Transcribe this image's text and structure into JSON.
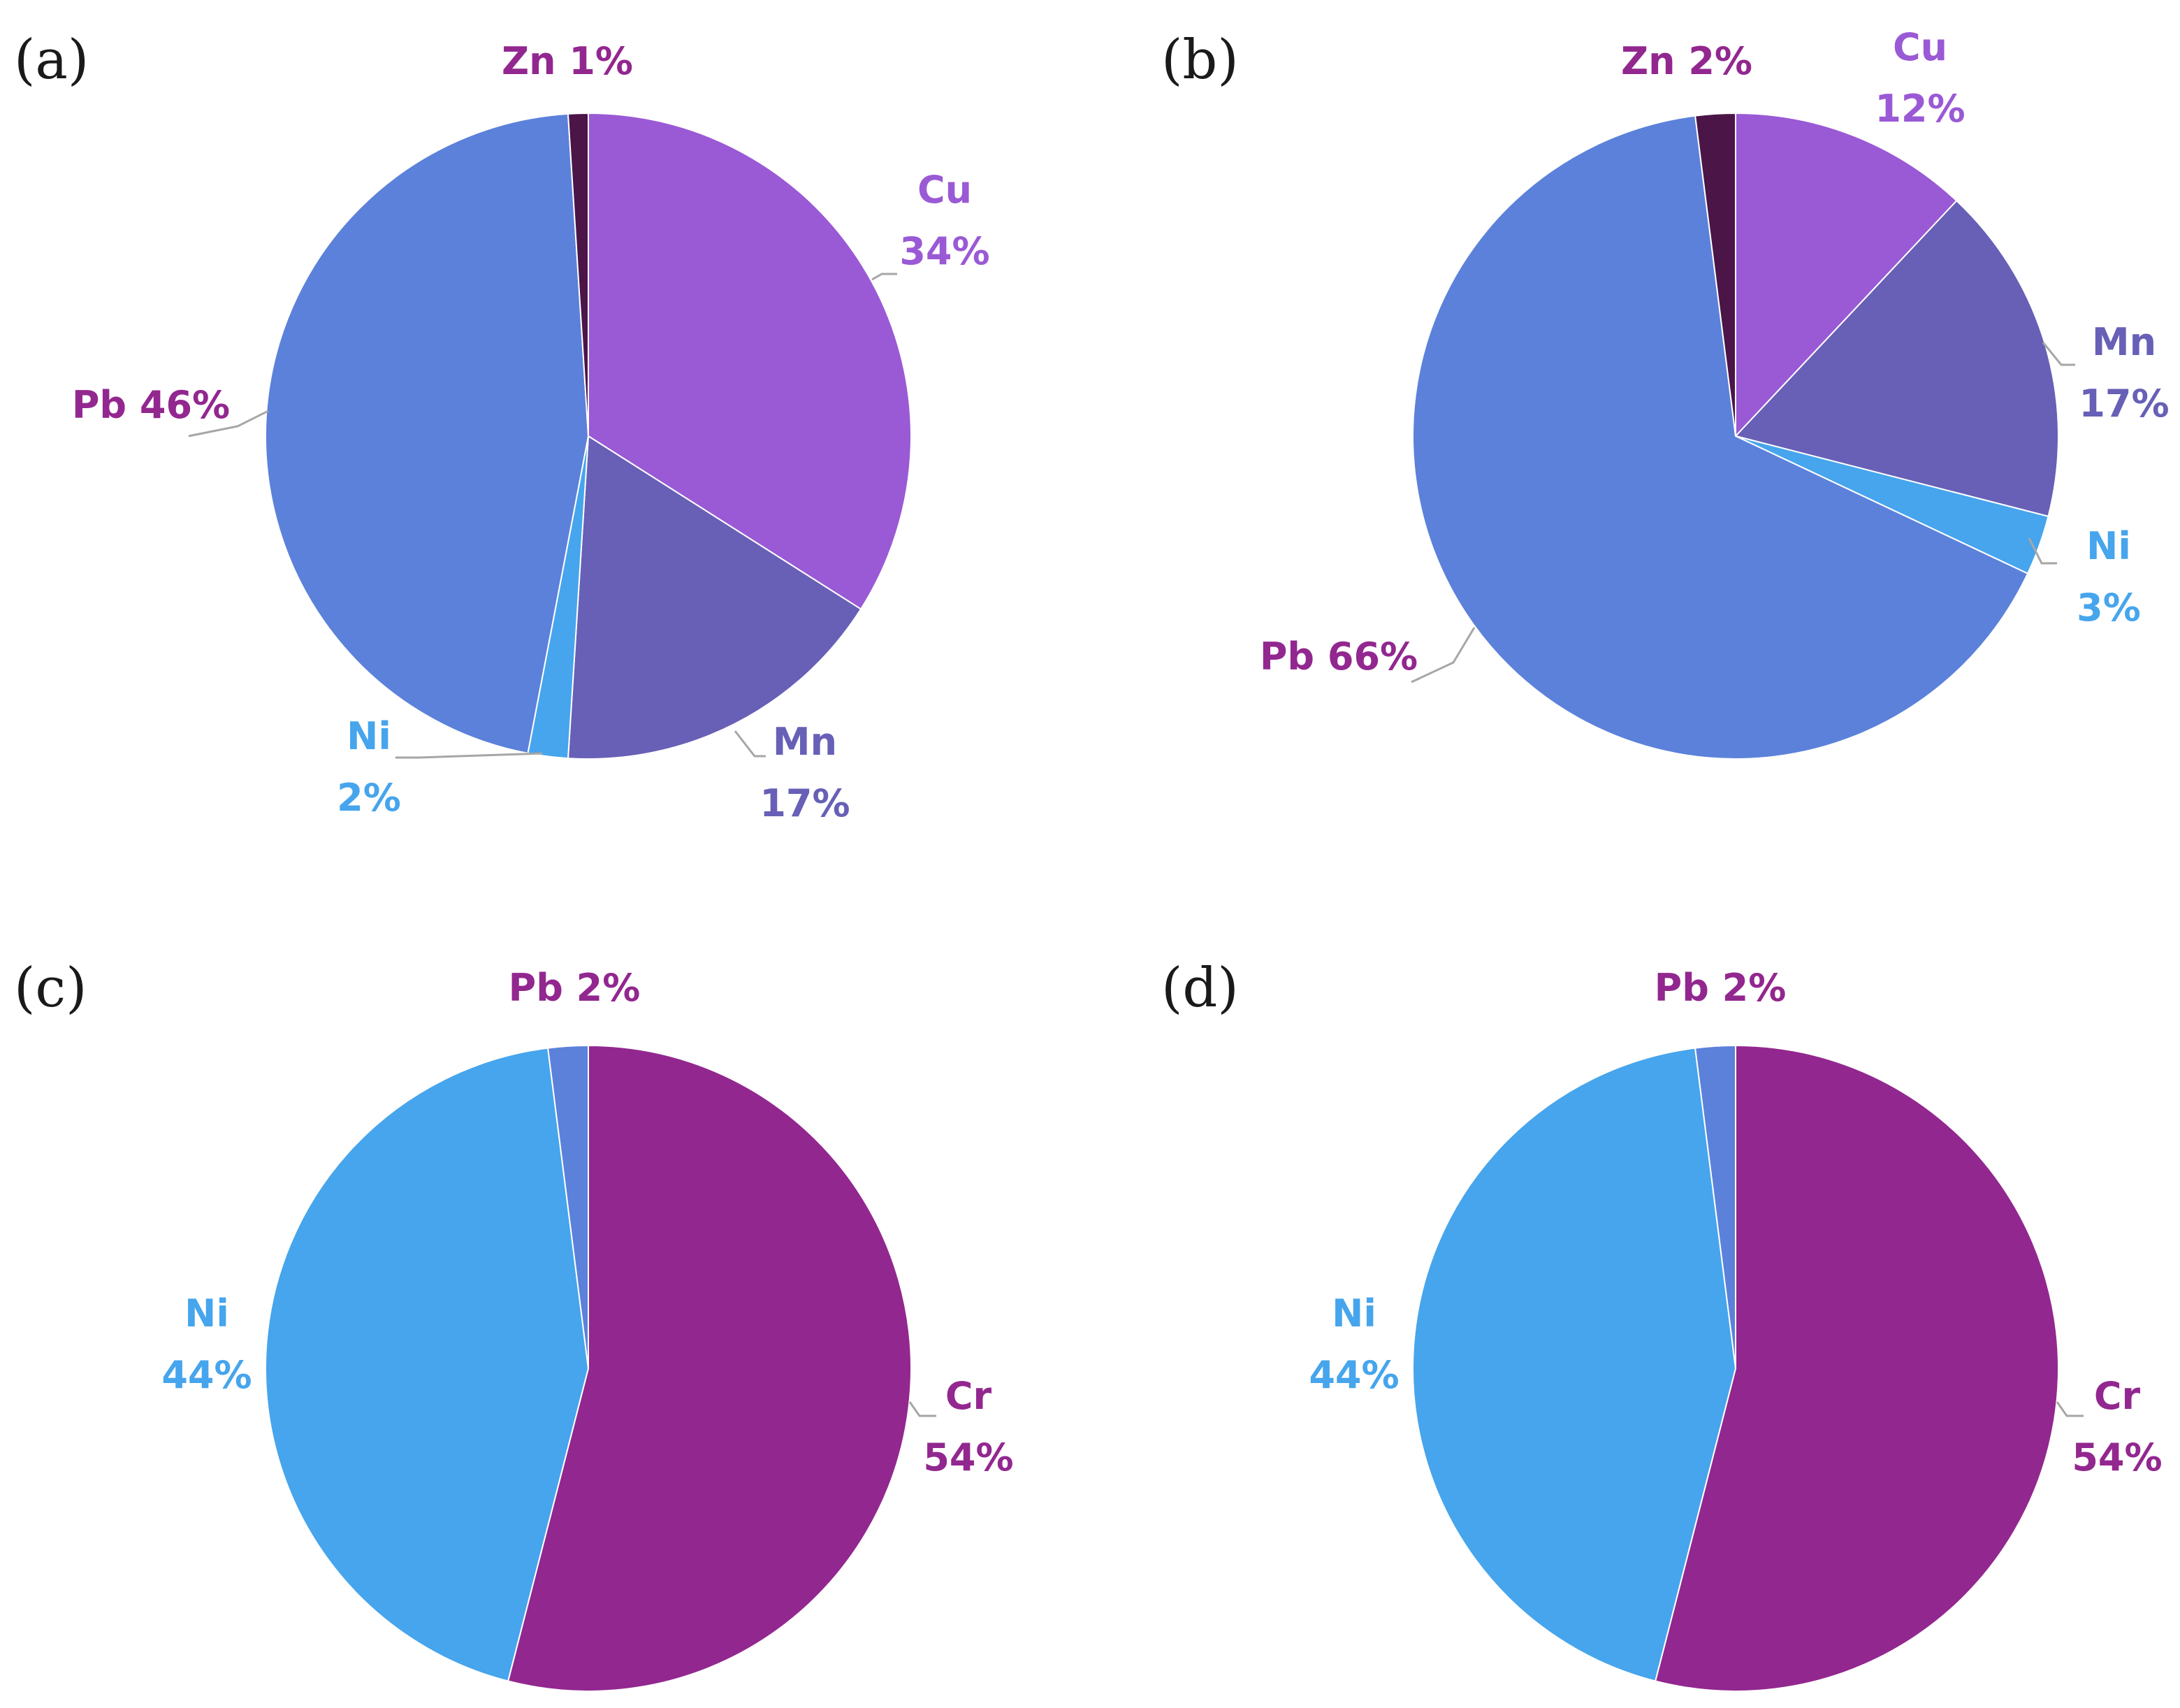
{
  "chart_data": [
    {
      "type": "pie",
      "panel_label": "(a)",
      "slices": [
        {
          "name": "Cu",
          "value": 34,
          "label_lines": [
            "Cu",
            "34%"
          ],
          "color": "#9a59d5",
          "label_color": "#9a59d5"
        },
        {
          "name": "Mn",
          "value": 17,
          "label_lines": [
            "Mn",
            "17%"
          ],
          "color": "#6760b6",
          "label_color": "#6760b6"
        },
        {
          "name": "Ni",
          "value": 2,
          "label_lines": [
            "Ni",
            "2%"
          ],
          "color": "#46a5ec",
          "label_color": "#46a5ec"
        },
        {
          "name": "Pb",
          "value": 46,
          "label_lines": [
            "Pb 46%"
          ],
          "color": "#5b81da",
          "label_color": "#92278f"
        },
        {
          "name": "Zn",
          "value": 1,
          "label_lines": [
            "Zn 1%"
          ],
          "color": "#4b1548",
          "label_color": "#92278f"
        }
      ]
    },
    {
      "type": "pie",
      "panel_label": "(b)",
      "slices": [
        {
          "name": "Cu",
          "value": 12,
          "label_lines": [
            "Cu",
            "12%"
          ],
          "color": "#9a59d5",
          "label_color": "#9a59d5"
        },
        {
          "name": "Mn",
          "value": 17,
          "label_lines": [
            "Mn",
            "17%"
          ],
          "color": "#6760b6",
          "label_color": "#6760b6"
        },
        {
          "name": "Ni",
          "value": 3,
          "label_lines": [
            "Ni",
            "3%"
          ],
          "color": "#46a5ec",
          "label_color": "#46a5ec"
        },
        {
          "name": "Pb",
          "value": 66,
          "label_lines": [
            "Pb 66%"
          ],
          "color": "#5b81da",
          "label_color": "#92278f"
        },
        {
          "name": "Zn",
          "value": 2,
          "label_lines": [
            "Zn 2%"
          ],
          "color": "#4b1548",
          "label_color": "#92278f"
        }
      ]
    },
    {
      "type": "pie",
      "panel_label": "(c)",
      "slices": [
        {
          "name": "Cr",
          "value": 54,
          "label_lines": [
            "Cr",
            "54%"
          ],
          "color": "#92278f",
          "label_color": "#92278f"
        },
        {
          "name": "Ni",
          "value": 44,
          "label_lines": [
            "Ni",
            "44%"
          ],
          "color": "#46a5ec",
          "label_color": "#46a5ec"
        },
        {
          "name": "Pb",
          "value": 2,
          "label_lines": [
            "Pb 2%"
          ],
          "color": "#5b81da",
          "label_color": "#92278f"
        }
      ]
    },
    {
      "type": "pie",
      "panel_label": "(d)",
      "slices": [
        {
          "name": "Cr",
          "value": 54,
          "label_lines": [
            "Cr",
            "54%"
          ],
          "color": "#92278f",
          "label_color": "#92278f"
        },
        {
          "name": "Ni",
          "value": 44,
          "label_lines": [
            "Ni",
            "44%"
          ],
          "color": "#46a5ec",
          "label_color": "#46a5ec"
        },
        {
          "name": "Pb",
          "value": 2,
          "label_lines": [
            "Pb 2%"
          ],
          "color": "#5b81da",
          "label_color": "#92278f"
        }
      ]
    }
  ]
}
